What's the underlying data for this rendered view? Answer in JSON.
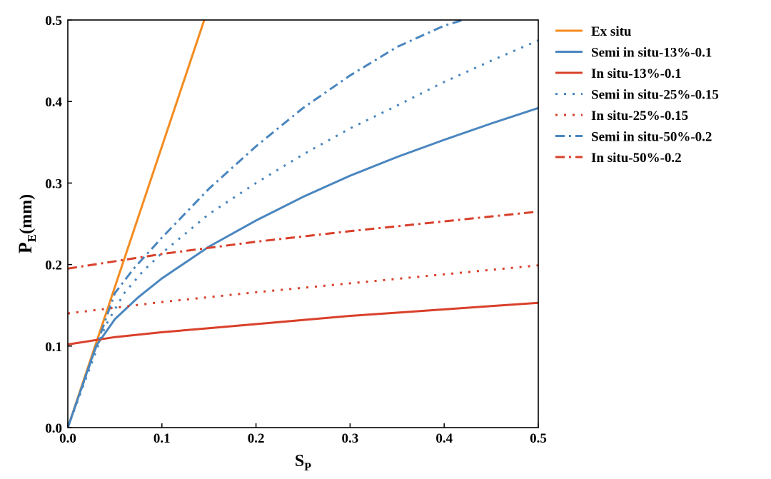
{
  "chart_data": {
    "type": "line",
    "title": "",
    "xlabel": {
      "main": "S",
      "sub": "P"
    },
    "ylabel": {
      "main": "P",
      "sub": "E",
      "rest": "(mm)"
    },
    "xlim": [
      0,
      0.5
    ],
    "ylim": [
      0,
      0.5
    ],
    "xticks": [
      0.0,
      0.1,
      0.2,
      0.3,
      0.4,
      0.5
    ],
    "yticks": [
      0.0,
      0.1,
      0.2,
      0.3,
      0.4,
      0.5
    ],
    "xtick_labels": [
      "0.0",
      "0.1",
      "0.2",
      "0.3",
      "0.4",
      "0.5"
    ],
    "ytick_labels": [
      "0.0",
      "0.1",
      "0.2",
      "0.3",
      "0.4",
      "0.5"
    ],
    "grid": false,
    "legend_position": "right-outside-top",
    "series": [
      {
        "name": "Ex situ",
        "color": "#f58b1f",
        "style": "solid",
        "x": [
          0,
          0.145
        ],
        "y": [
          0,
          0.5
        ]
      },
      {
        "name": "Semi in situ-13%-0.1",
        "color": "#4a86bf",
        "style": "solid",
        "x": [
          0,
          0.03,
          0.05,
          0.075,
          0.1,
          0.15,
          0.2,
          0.25,
          0.3,
          0.35,
          0.4,
          0.45,
          0.5
        ],
        "y": [
          0,
          0.1,
          0.133,
          0.16,
          0.183,
          0.222,
          0.254,
          0.283,
          0.309,
          0.332,
          0.353,
          0.373,
          0.392
        ]
      },
      {
        "name": "In situ-13%-0.1",
        "color": "#d9402b",
        "style": "solid",
        "x": [
          0,
          0.05,
          0.1,
          0.15,
          0.2,
          0.25,
          0.3,
          0.35,
          0.4,
          0.45,
          0.5
        ],
        "y": [
          0.102,
          0.111,
          0.117,
          0.122,
          0.127,
          0.132,
          0.137,
          0.141,
          0.145,
          0.149,
          0.153
        ]
      },
      {
        "name": "Semi in situ-25%-0.15",
        "color": "#4a86bf",
        "style": "dot",
        "x": [
          0,
          0.04,
          0.06,
          0.08,
          0.1,
          0.15,
          0.2,
          0.25,
          0.3,
          0.35,
          0.4,
          0.45,
          0.5
        ],
        "y": [
          0,
          0.125,
          0.165,
          0.192,
          0.214,
          0.262,
          0.3,
          0.335,
          0.367,
          0.395,
          0.424,
          0.45,
          0.475
        ]
      },
      {
        "name": "In situ-25%-0.15",
        "color": "#d9402b",
        "style": "dot",
        "x": [
          0,
          0.1,
          0.2,
          0.3,
          0.4,
          0.5
        ],
        "y": [
          0.14,
          0.154,
          0.166,
          0.177,
          0.188,
          0.199
        ]
      },
      {
        "name": "Semi in situ-50%-0.2",
        "color": "#4a86bf",
        "style": "dashdot",
        "x": [
          0,
          0.05,
          0.07,
          0.1,
          0.15,
          0.2,
          0.25,
          0.3,
          0.35,
          0.4,
          0.42
        ],
        "y": [
          0,
          0.165,
          0.195,
          0.233,
          0.293,
          0.345,
          0.392,
          0.432,
          0.467,
          0.493,
          0.5
        ]
      },
      {
        "name": "In situ-50%-0.2",
        "color": "#d9402b",
        "style": "dashdot",
        "x": [
          0,
          0.1,
          0.2,
          0.3,
          0.4,
          0.5
        ],
        "y": [
          0.195,
          0.213,
          0.228,
          0.241,
          0.253,
          0.265
        ]
      }
    ]
  }
}
